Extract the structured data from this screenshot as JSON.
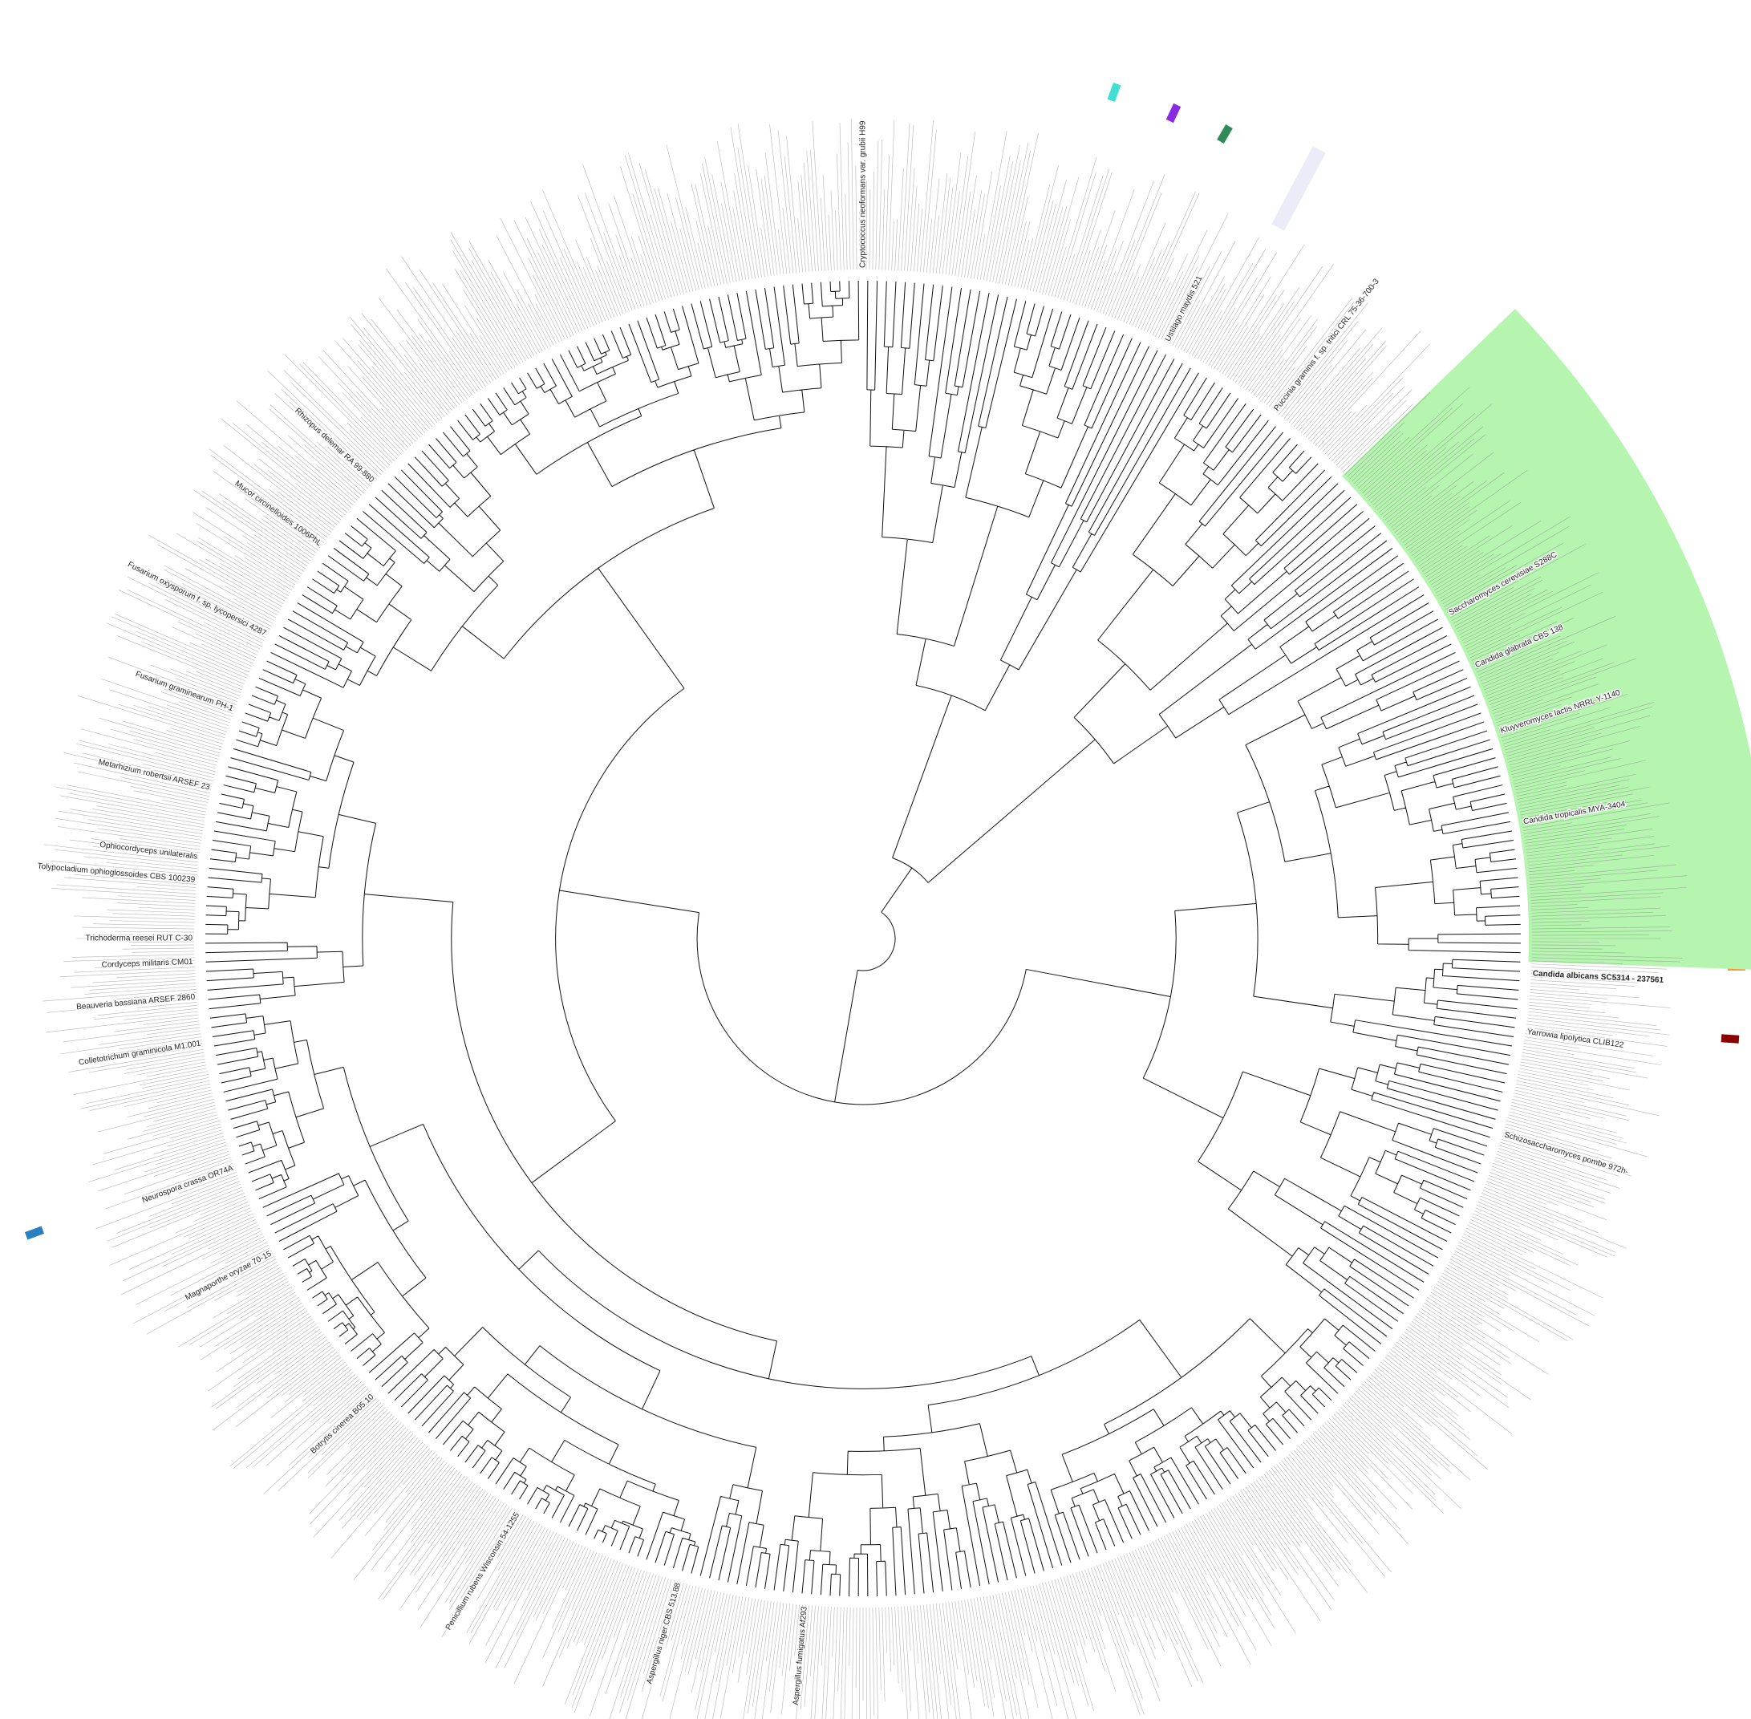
{
  "title": null,
  "leaves": [
    "Cryptococcus neoformans var. grubii H99",
    "Ustilago maydis 521",
    "Puccinia graminis f. sp. tritici CRL 75-36-700-3",
    "Saccharomyces cerevisiae S288C",
    "Candida glabrata CBS 138",
    "Kluyveromyces lactis NRRL Y-1140",
    "Candida tropicalis MYA-3404",
    "Candida albicans SC5314 - 237561",
    "Yarrowia lipolytica CLIB122",
    "Schizosaccharomyces pombe 972h-",
    "Aspergillus fumigatus Af293",
    "Aspergillus niger CBS 513.88",
    "Penicillium rubens Wisconsin 54-1255",
    "Botrytis cinerea B05.10",
    "Magnaporthe oryzae 70-15",
    "Neurospora crassa OR74A",
    "Colletotrichum graminicola M1.001",
    "Beauveria bassiana ARSEF 2860",
    "Cordyceps militaris CM01",
    "Trichoderma reesei RUT C-30",
    "Tolypocladium ophioglossoides CBS 100239",
    "Ophiocordyceps unilateralis",
    "Metarhizium robertsii ARSEF 23",
    "Fusarium graminearum PH-1",
    "Fusarium oxysporum f. sp. lycopersici 4287",
    "Mucor circinelloides 1006PhL",
    "Rhizopus delemar RA 99-880"
  ]
}
